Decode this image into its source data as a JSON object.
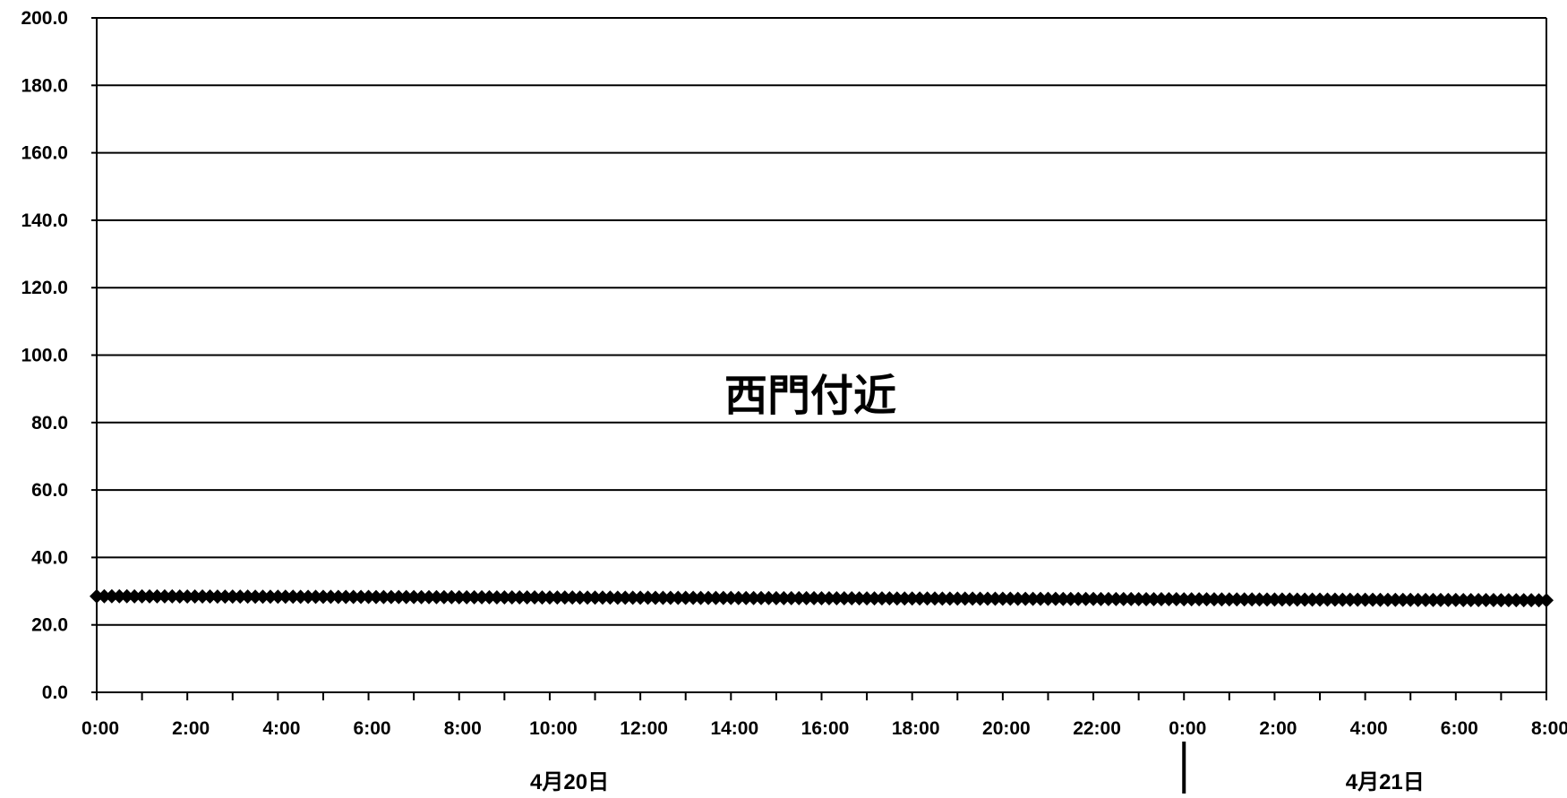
{
  "chart_data": {
    "type": "line",
    "title": "",
    "xlabel": "",
    "ylabel": "",
    "ylim": [
      0,
      200
    ],
    "y_ticks": [
      "0.0",
      "20.0",
      "40.0",
      "60.0",
      "80.0",
      "100.0",
      "120.0",
      "140.0",
      "160.0",
      "180.0",
      "200.0"
    ],
    "x_ticks": [
      "0:00",
      "2:00",
      "4:00",
      "6:00",
      "8:00",
      "10:00",
      "12:00",
      "14:00",
      "16:00",
      "18:00",
      "20:00",
      "22:00",
      "0:00",
      "2:00",
      "4:00",
      "6:00",
      "8:00"
    ],
    "x_range_hours": [
      0,
      32
    ],
    "date_labels": [
      {
        "text": "4月20日",
        "at_hour": 10.2
      },
      {
        "text": "4月21日",
        "at_hour": 28.2
      }
    ],
    "day_separator_hour": 24,
    "grid": "horizontal",
    "legend": "none",
    "annotation": "西門付近",
    "series": [
      {
        "marker": "diamond",
        "color": "#000000",
        "interval_minutes": 10,
        "start": 28.5,
        "end": 27.3
      }
    ]
  }
}
